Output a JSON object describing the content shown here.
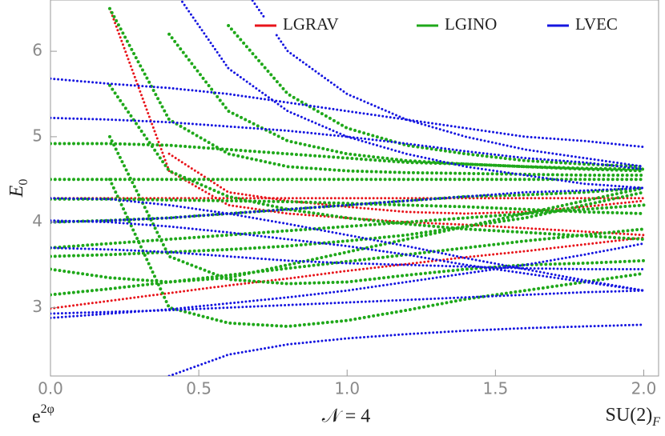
{
  "chart_data": {
    "type": "dotted-curves",
    "x_label_left": {
      "text": "e",
      "sup": "2φ"
    },
    "x_label_center": "𝒩 = 4",
    "x_label_right": {
      "text": "SU(2)",
      "sub": "F"
    },
    "y_label": {
      "text": "E",
      "sub": "0"
    },
    "xlim": [
      0,
      2.05
    ],
    "ylim": [
      2.2,
      6.6
    ],
    "xticks": [
      {
        "value": 0,
        "label": "0.0"
      },
      {
        "value": 0.5,
        "label": "0.5"
      },
      {
        "value": 1,
        "label": "1.0"
      },
      {
        "value": 1.5,
        "label": "1.5"
      },
      {
        "value": 2,
        "label": "2.0"
      }
    ],
    "yticks": [
      3,
      4,
      5,
      6
    ],
    "legend": "upper right",
    "x": [
      0,
      0.2,
      0.4,
      0.6,
      0.8,
      1.0,
      1.2,
      1.4,
      1.6,
      1.8,
      2.0
    ],
    "series": [
      {
        "name": "LGRAV",
        "color": "#e8141b",
        "curves": [
          [
            2.99,
            3.08,
            3.17,
            3.26,
            3.34,
            3.43,
            3.51,
            3.59,
            3.66,
            3.74,
            3.82
          ],
          [
            null,
            6.5,
            4.6,
            4.2,
            4.1,
            4.05,
            4.0,
            3.97,
            3.93,
            3.89,
            3.85
          ],
          [
            4.28,
            4.28,
            4.28,
            4.28,
            4.28,
            4.28,
            4.28,
            4.28,
            4.28,
            4.28,
            4.28
          ],
          [
            null,
            null,
            4.8,
            4.35,
            4.25,
            4.18,
            4.12,
            4.1,
            4.12,
            4.18,
            4.25
          ]
        ]
      },
      {
        "name": "LGINO",
        "color": "#1fa81a",
        "curves": [
          [
            3.15,
            3.22,
            3.3,
            3.38,
            3.46,
            3.54,
            3.62,
            3.7,
            3.78,
            3.85,
            3.92
          ],
          [
            null,
            4.5,
            3.0,
            2.82,
            2.78,
            2.85,
            2.97,
            3.1,
            3.2,
            3.3,
            3.4
          ],
          [
            null,
            5.0,
            3.6,
            3.33,
            3.28,
            3.3,
            3.38,
            3.45,
            3.5,
            3.52,
            3.55
          ],
          [
            4.92,
            4.92,
            4.9,
            4.85,
            4.8,
            4.75,
            4.7,
            4.68,
            4.65,
            4.62,
            4.6
          ],
          [
            4.5,
            4.5,
            4.5,
            4.5,
            4.5,
            4.5,
            4.5,
            4.5,
            4.5,
            4.5,
            4.5
          ],
          [
            4.0,
            4.02,
            4.05,
            4.1,
            4.15,
            4.2,
            4.25,
            4.3,
            4.32,
            4.35,
            4.4
          ],
          [
            3.7,
            3.75,
            3.8,
            3.85,
            3.9,
            3.95,
            4.0,
            4.05,
            4.1,
            4.15,
            4.2
          ],
          [
            null,
            6.5,
            5.2,
            4.8,
            4.65,
            4.6,
            4.58,
            4.57,
            4.56,
            4.55,
            4.55
          ],
          [
            null,
            null,
            6.2,
            5.3,
            4.95,
            4.8,
            4.72,
            4.68,
            4.65,
            4.63,
            4.62
          ],
          [
            3.45,
            3.35,
            3.3,
            3.35,
            3.5,
            3.65,
            3.8,
            3.95,
            4.1,
            4.25,
            4.4
          ],
          [
            null,
            5.6,
            4.6,
            4.3,
            4.15,
            4.05,
            3.98,
            3.92,
            3.88,
            3.84,
            3.8
          ],
          [
            null,
            null,
            null,
            6.3,
            5.5,
            5.1,
            4.9,
            4.8,
            4.72,
            4.68,
            4.65
          ],
          [
            4.27,
            4.27,
            4.26,
            4.25,
            4.24,
            4.22,
            4.2,
            4.18,
            4.15,
            4.12,
            4.1
          ],
          [
            3.6,
            3.62,
            3.65,
            3.68,
            3.72,
            3.78,
            3.85,
            3.95,
            4.05,
            4.2,
            4.35
          ]
        ]
      },
      {
        "name": "LVEC",
        "color": "#1515e0",
        "curves": [
          [
            2.88,
            2.93,
            2.98,
            3.05,
            3.12,
            3.2,
            3.3,
            3.4,
            3.5,
            3.62,
            3.75
          ],
          [
            2.93,
            2.95,
            2.97,
            3.0,
            3.03,
            3.06,
            3.09,
            3.12,
            3.15,
            3.18,
            3.2
          ],
          [
            null,
            null,
            2.2,
            2.45,
            2.57,
            2.64,
            2.69,
            2.73,
            2.76,
            2.78,
            2.8
          ],
          [
            5.68,
            5.62,
            5.57,
            5.5,
            5.4,
            5.3,
            5.2,
            5.1,
            5.0,
            4.95,
            4.88
          ],
          [
            5.22,
            5.2,
            5.17,
            5.12,
            5.07,
            5.0,
            4.92,
            4.83,
            4.75,
            4.7,
            4.62
          ],
          [
            4.02,
            4.0,
            3.95,
            3.88,
            3.8,
            3.72,
            3.62,
            3.5,
            3.4,
            3.3,
            3.2
          ],
          [
            4.28,
            4.27,
            4.2,
            4.1,
            3.98,
            3.85,
            3.72,
            3.58,
            3.45,
            3.32,
            3.2
          ],
          [
            null,
            null,
            null,
            7.0,
            6.0,
            5.5,
            5.2,
            5.0,
            4.85,
            4.75,
            4.65
          ],
          [
            null,
            null,
            6.8,
            5.8,
            5.3,
            5.0,
            4.8,
            4.65,
            4.55,
            4.45,
            4.4
          ],
          [
            4.0,
            4.02,
            4.05,
            4.1,
            4.15,
            4.2,
            4.25,
            4.3,
            4.35,
            4.37,
            4.4
          ],
          [
            3.7,
            3.68,
            3.65,
            3.6,
            3.55,
            3.52,
            3.5,
            3.48,
            3.46,
            3.45,
            3.45
          ]
        ]
      }
    ]
  }
}
